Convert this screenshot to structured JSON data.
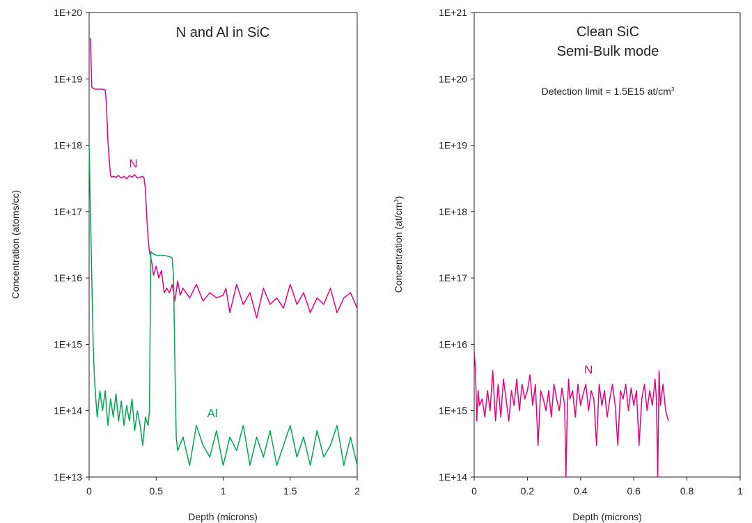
{
  "chart_data": [
    {
      "type": "line",
      "title": "N and Al in SiC",
      "xlabel": "Depth (microns)",
      "ylabel": "Concentration (atoms/cc)",
      "xlim": [
        0,
        2
      ],
      "ylim": [
        10000000000000.0,
        1e+20
      ],
      "yscale": "log",
      "xticks": [
        "0",
        "0.5",
        "1",
        "1.5",
        "2"
      ],
      "yticks": [
        "1E+13",
        "1E+14",
        "1E+15",
        "1E+16",
        "1E+17",
        "1E+18",
        "1E+19",
        "1E+20"
      ],
      "series": [
        {
          "name": "N",
          "color": "#e6007e",
          "x": [
            0.0,
            0.01,
            0.02,
            0.04,
            0.06,
            0.08,
            0.1,
            0.12,
            0.13,
            0.14,
            0.15,
            0.16,
            0.17,
            0.18,
            0.2,
            0.22,
            0.24,
            0.26,
            0.28,
            0.3,
            0.32,
            0.34,
            0.36,
            0.38,
            0.4,
            0.41,
            0.42,
            0.43,
            0.44,
            0.45,
            0.46,
            0.47,
            0.48,
            0.5,
            0.52,
            0.54,
            0.56,
            0.58,
            0.6,
            0.62,
            0.64,
            0.66,
            0.68,
            0.7,
            0.75,
            0.8,
            0.85,
            0.9,
            0.95,
            1.0,
            1.02,
            1.05,
            1.1,
            1.15,
            1.2,
            1.25,
            1.3,
            1.35,
            1.4,
            1.45,
            1.5,
            1.55,
            1.6,
            1.65,
            1.7,
            1.75,
            1.8,
            1.85,
            1.9,
            1.95,
            2.0
          ],
          "y": [
            4e+19,
            4e+19,
            7.5e+18,
            7e+18,
            7e+18,
            7e+18,
            7e+18,
            6.8e+18,
            4e+18,
            1.2e+18,
            6e+17,
            3.5e+17,
            3.3e+17,
            3.4e+17,
            3.3e+17,
            3.5e+17,
            3.2e+17,
            3.4e+17,
            3.1e+17,
            3.5e+17,
            3.3e+17,
            3.6e+17,
            3.2e+17,
            3.3e+17,
            3.4e+17,
            3.2e+17,
            2.2e+17,
            8e+16,
            4e+16,
            2.5e+16,
            2e+16,
            1.6e+16,
            1.1e+16,
            1.5e+16,
            1e+16,
            1.3e+16,
            6000000000000000.0,
            7000000000000000.0,
            6000000000000000.0,
            8000000000000000.0,
            4500000000000000.0,
            9000000000000000.0,
            5500000000000000.0,
            7000000000000000.0,
            5000000000000000.0,
            8000000000000000.0,
            4500000000000000.0,
            6000000000000000.0,
            5000000000000000.0,
            5500000000000000.0,
            7000000000000000.0,
            3000000000000000.0,
            8000000000000000.0,
            4000000000000000.0,
            6000000000000000.0,
            2500000000000000.0,
            7000000000000000.0,
            4000000000000000.0,
            5000000000000000.0,
            3500000000000000.0,
            8000000000000000.0,
            4000000000000000.0,
            6000000000000000.0,
            3000000000000000.0,
            5000000000000000.0,
            4000000000000000.0,
            7000000000000000.0,
            3000000000000000.0,
            5000000000000000.0,
            6000000000000000.0,
            3500000000000000.0
          ]
        },
        {
          "name": "Al",
          "color": "#00a650",
          "x": [
            0.0,
            0.01,
            0.02,
            0.03,
            0.04,
            0.05,
            0.06,
            0.08,
            0.1,
            0.12,
            0.14,
            0.16,
            0.18,
            0.2,
            0.22,
            0.24,
            0.26,
            0.28,
            0.3,
            0.32,
            0.34,
            0.36,
            0.38,
            0.4,
            0.42,
            0.44,
            0.45,
            0.46,
            0.47,
            0.48,
            0.5,
            0.55,
            0.6,
            0.62,
            0.63,
            0.64,
            0.65,
            0.66,
            0.7,
            0.75,
            0.8,
            0.85,
            0.9,
            0.95,
            1.0,
            1.05,
            1.1,
            1.15,
            1.2,
            1.25,
            1.3,
            1.35,
            1.4,
            1.45,
            1.5,
            1.55,
            1.6,
            1.65,
            1.7,
            1.75,
            1.8,
            1.85,
            1.9,
            1.95,
            2.0
          ],
          "y": [
            1e+18,
            1e+17,
            1e+16,
            1000000000000000.0,
            300000000000000.0,
            150000000000000.0,
            80000000000000.0,
            200000000000000.0,
            100000000000000.0,
            200000000000000.0,
            60000000000000.0,
            150000000000000.0,
            80000000000000.0,
            180000000000000.0,
            70000000000000.0,
            140000000000000.0,
            60000000000000.0,
            120000000000000.0,
            70000000000000.0,
            150000000000000.0,
            50000000000000.0,
            100000000000000.0,
            60000000000000.0,
            30000000000000.0,
            80000000000000.0,
            60000000000000.0,
            100000000000000.0,
            2.5e+16,
            2.4e+16,
            2.3e+16,
            2.2e+16,
            2.2e+16,
            2.1e+16,
            2e+16,
            1e+16,
            500000000000000.0,
            40000000000000.0,
            25000000000000.0,
            40000000000000.0,
            15000000000000.0,
            60000000000000.0,
            30000000000000.0,
            20000000000000.0,
            50000000000000.0,
            15000000000000.0,
            40000000000000.0,
            25000000000000.0,
            60000000000000.0,
            15000000000000.0,
            40000000000000.0,
            20000000000000.0,
            50000000000000.0,
            15000000000000.0,
            30000000000000.0,
            60000000000000.0,
            20000000000000.0,
            40000000000000.0,
            15000000000000.0,
            50000000000000.0,
            20000000000000.0,
            30000000000000.0,
            60000000000000.0,
            15000000000000.0,
            40000000000000.0,
            15000000000000.0
          ]
        }
      ],
      "annotations": [
        {
          "text": "N",
          "x": 0.33,
          "y": 4.6e+17,
          "color": "#e6007e"
        },
        {
          "text": "Al",
          "x": 0.92,
          "y": 80000000000000.0,
          "color": "#00a650"
        }
      ]
    },
    {
      "type": "line",
      "title_lines": [
        "Clean SiC",
        "Semi-Bulk mode"
      ],
      "annotation_text": "Detection limit = 1.5E15 at/cm",
      "annotation_sup": "3",
      "xlabel": "Depth (microns)",
      "ylabel_text": "Concentration (at/cm",
      "ylabel_sup": "3",
      "ylabel_close": ")",
      "xlim": [
        0,
        1
      ],
      "ylim": [
        100000000000000.0,
        1e+21
      ],
      "yscale": "log",
      "xticks": [
        "0",
        "0.2",
        "0.4",
        "0.6",
        "0.8",
        "1"
      ],
      "yticks": [
        "1E+14",
        "1E+15",
        "1E+16",
        "1E+17",
        "1E+18",
        "1E+19",
        "1E+20",
        "1E+21"
      ],
      "series": [
        {
          "name": "N",
          "color": "#e6007e",
          "x": [
            0.0,
            0.005,
            0.01,
            0.015,
            0.02,
            0.03,
            0.04,
            0.05,
            0.06,
            0.07,
            0.08,
            0.09,
            0.1,
            0.11,
            0.12,
            0.13,
            0.14,
            0.15,
            0.16,
            0.17,
            0.18,
            0.19,
            0.2,
            0.21,
            0.22,
            0.23,
            0.24,
            0.25,
            0.26,
            0.27,
            0.28,
            0.29,
            0.3,
            0.31,
            0.32,
            0.33,
            0.34,
            0.345,
            0.35,
            0.355,
            0.36,
            0.37,
            0.38,
            0.39,
            0.4,
            0.41,
            0.42,
            0.43,
            0.44,
            0.45,
            0.46,
            0.47,
            0.48,
            0.49,
            0.5,
            0.51,
            0.52,
            0.53,
            0.54,
            0.55,
            0.56,
            0.57,
            0.58,
            0.59,
            0.6,
            0.61,
            0.62,
            0.63,
            0.64,
            0.65,
            0.66,
            0.67,
            0.68,
            0.685,
            0.69,
            0.695,
            0.7,
            0.71,
            0.72,
            0.73
          ],
          "y": [
            8000000000000000.0,
            4000000000000000.0,
            700000000000000.0,
            2000000000000000.0,
            1200000000000000.0,
            1500000000000000.0,
            800000000000000.0,
            2000000000000000.0,
            1000000000000000.0,
            4000000000000000.0,
            700000000000000.0,
            2500000000000000.0,
            800000000000000.0,
            3000000000000000.0,
            1500000000000000.0,
            700000000000000.0,
            2000000000000000.0,
            1200000000000000.0,
            3000000000000000.0,
            1000000000000000.0,
            2500000000000000.0,
            1500000000000000.0,
            2000000000000000.0,
            3500000000000000.0,
            1200000000000000.0,
            2500000000000000.0,
            300000000000000.0,
            2000000000000000.0,
            1500000000000000.0,
            1000000000000000.0,
            2000000000000000.0,
            800000000000000.0,
            2500000000000000.0,
            1500000000000000.0,
            1000000000000000.0,
            2200000000000000.0,
            1200000000000000.0,
            100000000000000.0,
            1000000000000000.0,
            3000000000000000.0,
            1500000000000000.0,
            2000000000000000.0,
            800000000000000.0,
            2500000000000000.0,
            1200000000000000.0,
            1800000000000000.0,
            2500000000000000.0,
            1000000000000000.0,
            2000000000000000.0,
            1500000000000000.0,
            300000000000000.0,
            2500000000000000.0,
            1200000000000000.0,
            2000000000000000.0,
            800000000000000.0,
            1500000000000000.0,
            2500000000000000.0,
            1200000000000000.0,
            300000000000000.0,
            2000000000000000.0,
            1500000000000000.0,
            2500000000000000.0,
            1000000000000000.0,
            2200000000000000.0,
            1200000000000000.0,
            2000000000000000.0,
            300000000000000.0,
            1500000000000000.0,
            2500000000000000.0,
            1000000000000000.0,
            2000000000000000.0,
            1200000000000000.0,
            3000000000000000.0,
            1500000000000000.0,
            100000000000000.0,
            4000000000000000.0,
            1200000000000000.0,
            2500000000000000.0,
            1000000000000000.0,
            700000000000000.0
          ]
        }
      ],
      "annotations": [
        {
          "text": "N",
          "x": 0.43,
          "y": 3600000000000000.0,
          "color": "#e6007e"
        }
      ]
    }
  ]
}
